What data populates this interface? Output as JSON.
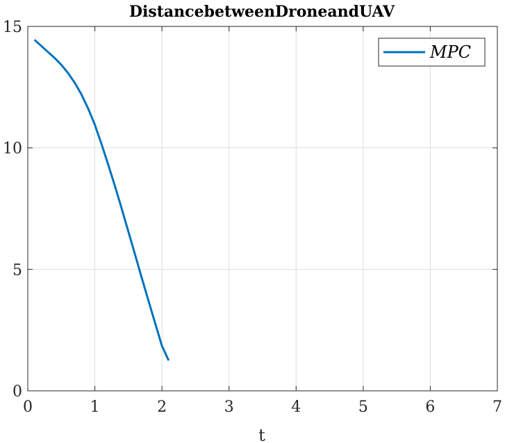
{
  "chart_data": {
    "type": "line",
    "title": "DistancebetweenDroneandUAV",
    "xlabel": "t",
    "ylabel": "",
    "xlim": [
      0,
      7
    ],
    "ylim": [
      0,
      15
    ],
    "xticks": [
      0,
      1,
      2,
      3,
      4,
      5,
      6,
      7
    ],
    "yticks": [
      0,
      5,
      10,
      15
    ],
    "grid": true,
    "legend_position": "top-right",
    "series": [
      {
        "name": "MPC",
        "color": "#0072BD",
        "x": [
          0.1,
          0.2,
          0.3,
          0.4,
          0.5,
          0.6,
          0.7,
          0.8,
          0.9,
          1.0,
          1.1,
          1.2,
          1.3,
          1.4,
          1.5,
          1.6,
          1.7,
          1.8,
          1.9,
          2.0,
          2.1
        ],
        "y": [
          14.45,
          14.2,
          13.95,
          13.7,
          13.42,
          13.08,
          12.68,
          12.2,
          11.62,
          10.95,
          10.15,
          9.3,
          8.42,
          7.5,
          6.55,
          5.6,
          4.64,
          3.7,
          2.77,
          1.85,
          1.25
        ]
      }
    ]
  }
}
